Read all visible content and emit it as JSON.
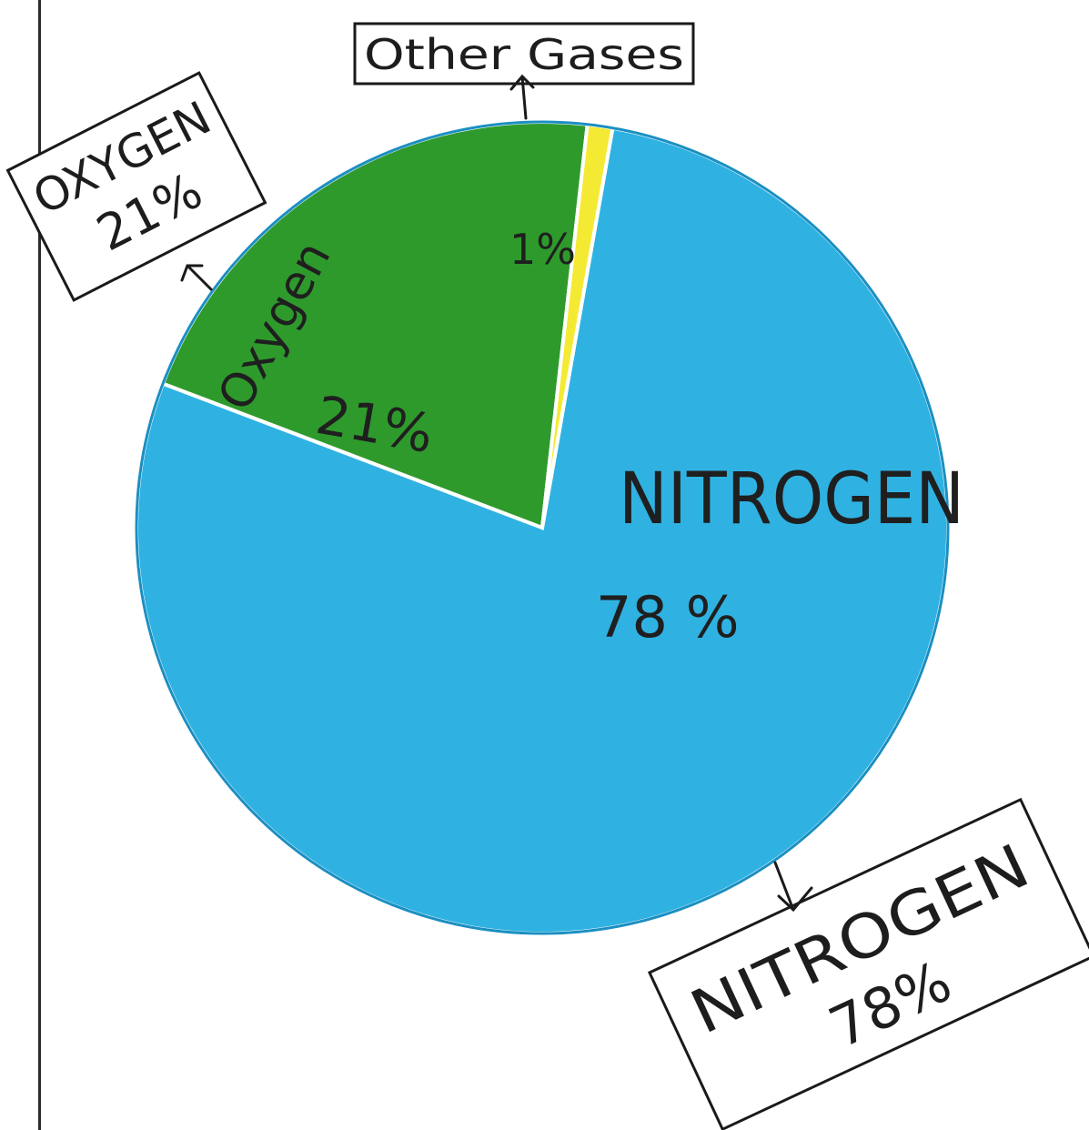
{
  "chart_data": {
    "type": "pie",
    "slices": [
      {
        "label": "NITROGEN",
        "value": 78,
        "value_text": "78 %",
        "color": "#2fb2e2"
      },
      {
        "label": "Oxygen",
        "value": 21,
        "value_text": "21%",
        "color": "#2e9a2c"
      },
      {
        "label": "",
        "value": 1,
        "value_text": "1%",
        "color": "#f4ea33"
      }
    ],
    "callouts": {
      "other": {
        "text": "Other Gases"
      },
      "oxygen": {
        "line1": "OXYGEN",
        "line2": "21%"
      },
      "nitrogen": {
        "line1": "NITROGEN",
        "line2": "78%"
      }
    }
  }
}
